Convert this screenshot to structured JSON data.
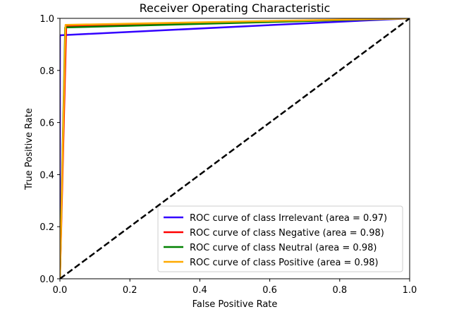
{
  "chart_data": {
    "type": "line",
    "title": "Receiver Operating Characteristic",
    "xlabel": "False Positive Rate",
    "ylabel": "True Positive Rate",
    "xlim": [
      0.0,
      1.0
    ],
    "ylim": [
      0.0,
      1.0
    ],
    "xticks": [
      0.0,
      0.2,
      0.4,
      0.6,
      0.8,
      1.0
    ],
    "yticks": [
      0.0,
      0.2,
      0.4,
      0.6,
      0.8,
      1.0
    ],
    "xtick_labels": [
      "0.0",
      "0.2",
      "0.4",
      "0.6",
      "0.8",
      "1.0"
    ],
    "ytick_labels": [
      "0.0",
      "0.2",
      "0.4",
      "0.6",
      "0.8",
      "1.0"
    ],
    "grid": false,
    "legend_position": "lower-right",
    "series": [
      {
        "name": "ROC curve of class Irrelevant (area = 0.97)",
        "color": "#3300ff",
        "x": [
          0.0,
          0.0,
          1.0
        ],
        "y": [
          0.0,
          0.935,
          1.0
        ]
      },
      {
        "name": "ROC curve of class Negative (area = 0.98)",
        "color": "#ff0000",
        "x": [
          0.0,
          0.018,
          1.0
        ],
        "y": [
          0.0,
          0.97,
          1.0
        ]
      },
      {
        "name": "ROC curve of class Neutral (area = 0.98)",
        "color": "#008000",
        "x": [
          0.0,
          0.015,
          1.0
        ],
        "y": [
          0.0,
          0.965,
          1.0
        ]
      },
      {
        "name": "ROC curve of class Positive (area = 0.98)",
        "color": "#ffaa00",
        "x": [
          0.0,
          0.016,
          1.0
        ],
        "y": [
          0.0,
          0.975,
          1.0
        ]
      }
    ],
    "reference_line": {
      "color": "#000000",
      "style": "dashed",
      "x": [
        0.0,
        1.0
      ],
      "y": [
        0.0,
        1.0
      ]
    }
  }
}
